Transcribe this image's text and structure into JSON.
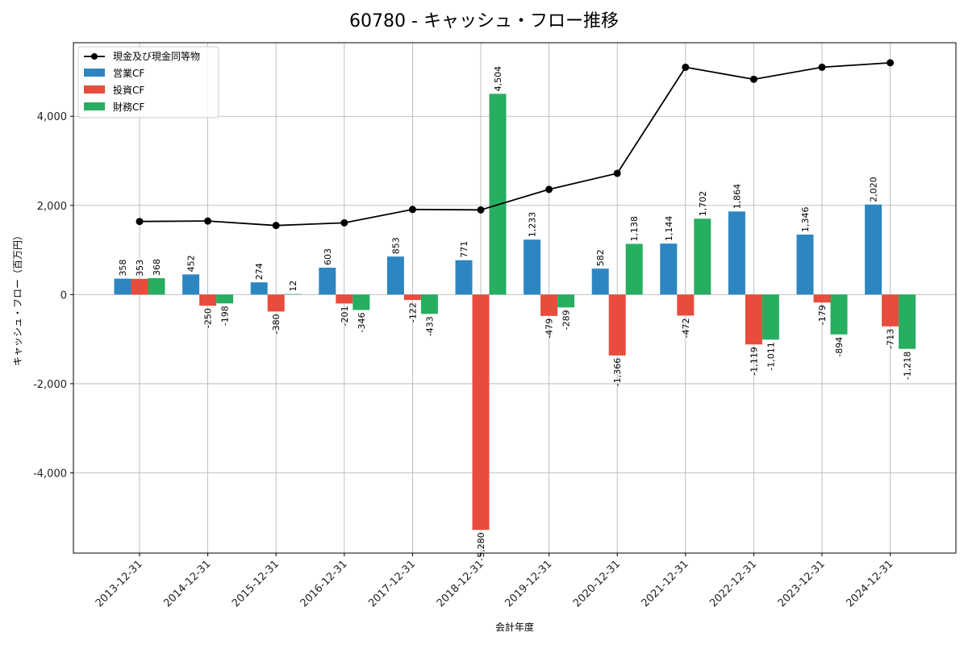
{
  "chart_data": {
    "type": "bar",
    "title": "60780 - キャッシュ・フロー推移",
    "xlabel": "会計年度",
    "ylabel": "キャッシュ・フロー（百万円）",
    "categories": [
      "2013-12-31",
      "2014-12-31",
      "2015-12-31",
      "2016-12-31",
      "2017-12-31",
      "2018-12-31",
      "2019-12-31",
      "2020-12-31",
      "2021-12-31",
      "2022-12-31",
      "2023-12-31",
      "2024-12-31"
    ],
    "series": [
      {
        "name": "営業CF",
        "color": "#2e86c1",
        "values": [
          358,
          452,
          274,
          603,
          853,
          771,
          1233,
          582,
          1144,
          1864,
          1346,
          2020
        ],
        "labels": [
          "358",
          "452",
          "274",
          "603",
          "853",
          "771",
          "1,233",
          "582",
          "1,144",
          "1,864",
          "1,346",
          "2,020"
        ]
      },
      {
        "name": "投資CF",
        "color": "#e74c3c",
        "values": [
          353,
          -250,
          -380,
          -201,
          -122,
          -5280,
          -479,
          -1366,
          -472,
          -1119,
          -179,
          -713
        ],
        "labels": [
          "353",
          "-250",
          "-380",
          "-201",
          "-122",
          "-5,280",
          "-479",
          "-1,366",
          "-472",
          "-1,119",
          "-179",
          "-713"
        ]
      },
      {
        "name": "財務CF",
        "color": "#27ae60",
        "values": [
          368,
          -198,
          12,
          -346,
          -433,
          4504,
          -289,
          1138,
          1702,
          -1011,
          -894,
          -1218
        ],
        "labels": [
          "368",
          "-198",
          "12",
          "-346",
          "-433",
          "4,504",
          "-289",
          "1,138",
          "1,702",
          "-1,011",
          "-894",
          "-1,218"
        ]
      }
    ],
    "line": {
      "name": "現金及び現金同等物",
      "color": "#000000",
      "values": [
        1640,
        1650,
        1550,
        1610,
        1910,
        1900,
        2360,
        2720,
        5100,
        4830,
        5100,
        5200
      ]
    },
    "ylim": [
      -5800,
      5650
    ],
    "yticks": [
      -4000,
      -2000,
      0,
      2000,
      4000
    ],
    "ytick_labels": [
      "-4,000",
      "-2,000",
      "0",
      "2,000",
      "4,000"
    ],
    "grid": true,
    "legend_position": "top-left"
  }
}
